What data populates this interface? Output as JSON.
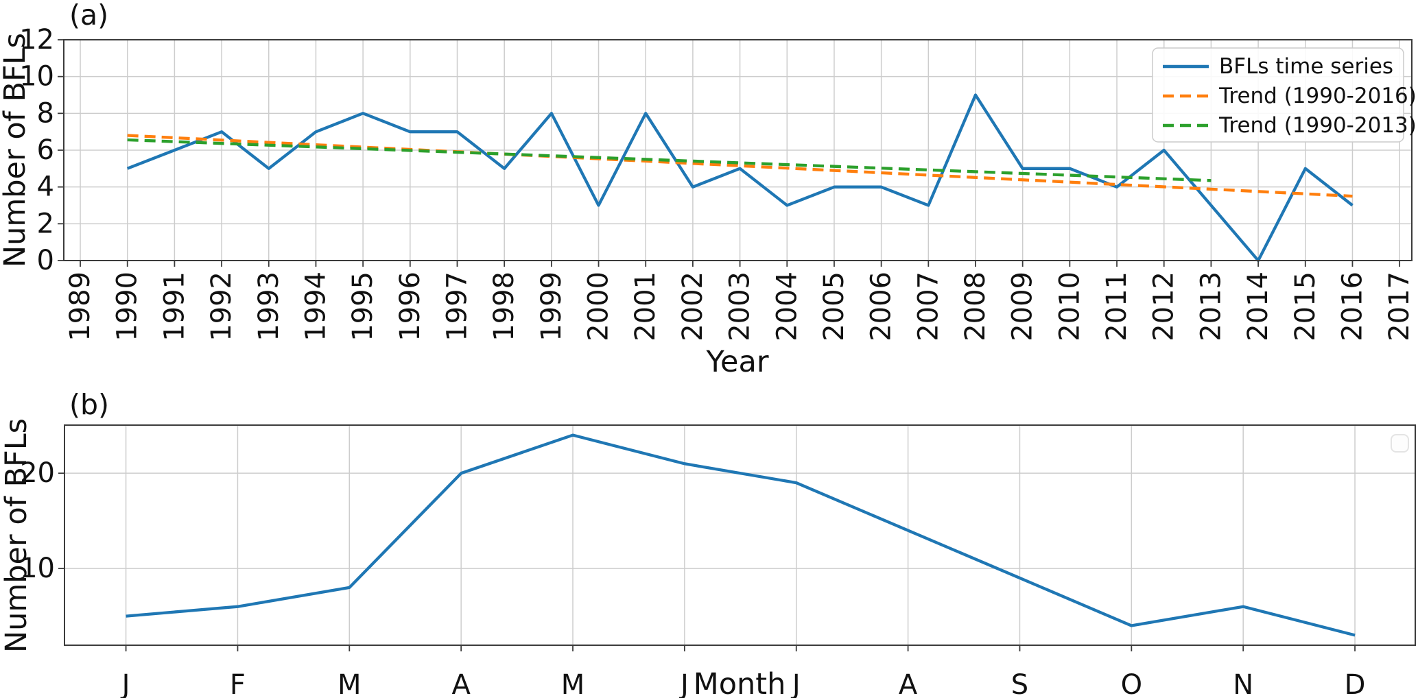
{
  "colors": {
    "series_blue": "#1f77b4",
    "trend_orange": "#ff7f0e",
    "trend_green": "#2ca02c",
    "gridline": "#cdcdcd",
    "spine": "#3b3b3b",
    "text": "#111111",
    "legend_border": "#cccccc"
  },
  "chart_data": [
    {
      "type": "line",
      "panel_label": "(a)",
      "xlabel": "Year",
      "ylabel": "Number of BFLs",
      "grid": true,
      "xlim": [
        1988.65,
        2017.26
      ],
      "ylim": [
        0,
        12
      ],
      "xticks": [
        "1989",
        "1990",
        "1991",
        "1992",
        "1993",
        "1994",
        "1995",
        "1996",
        "1997",
        "1998",
        "1999",
        "2000",
        "2001",
        "2002",
        "2003",
        "2004",
        "2005",
        "2006",
        "2007",
        "2008",
        "2009",
        "2010",
        "2011",
        "2012",
        "2013",
        "2014",
        "2015",
        "2016",
        "2017"
      ],
      "xtick_rotation": 90,
      "yticks": [
        "0",
        "2",
        "4",
        "6",
        "8",
        "10",
        "12"
      ],
      "legend": {
        "visible": true,
        "position": "upper right"
      },
      "series": [
        {
          "name": "BFLs time series",
          "color": "#1f77b4",
          "line_style": "solid",
          "x": [
            1990,
            1991,
            1992,
            1993,
            1994,
            1995,
            1996,
            1997,
            1998,
            1999,
            2000,
            2001,
            2002,
            2003,
            2004,
            2005,
            2006,
            2007,
            2008,
            2009,
            2010,
            2011,
            2012,
            2013,
            2014,
            2015,
            2016
          ],
          "y": [
            5,
            6,
            7,
            5,
            7,
            8,
            7,
            7,
            5,
            8,
            3,
            8,
            4,
            5,
            3,
            4,
            4,
            3,
            9,
            5,
            5,
            4,
            6,
            3,
            0,
            5,
            3
          ]
        },
        {
          "name": "Trend (1990-2016)",
          "color": "#ff7f0e",
          "line_style": "dashed",
          "x": [
            1990,
            2016
          ],
          "y": [
            6.8,
            3.5
          ]
        },
        {
          "name": "Trend (1990-2013)",
          "color": "#2ca02c",
          "line_style": "dashed",
          "x": [
            1990,
            2013
          ],
          "y": [
            6.56,
            4.35
          ]
        }
      ]
    },
    {
      "type": "line",
      "panel_label": "(b)",
      "xlabel": "Month",
      "ylabel": "Number of BFLs",
      "grid": true,
      "xlim": [
        -0.55,
        11.54
      ],
      "ylim": [
        1.95,
        25.05
      ],
      "categories": [
        "J",
        "F",
        "M",
        "A",
        "M",
        "J",
        "J",
        "A",
        "S",
        "O",
        "N",
        "D"
      ],
      "yticks": [
        "10",
        "20"
      ],
      "legend": {
        "visible": false,
        "empty_box": true
      },
      "series": [
        {
          "color": "#1f77b4",
          "line_style": "solid",
          "y": [
            5,
            6,
            8,
            20,
            24,
            21,
            19,
            14,
            9,
            4,
            6,
            3
          ]
        }
      ]
    }
  ]
}
